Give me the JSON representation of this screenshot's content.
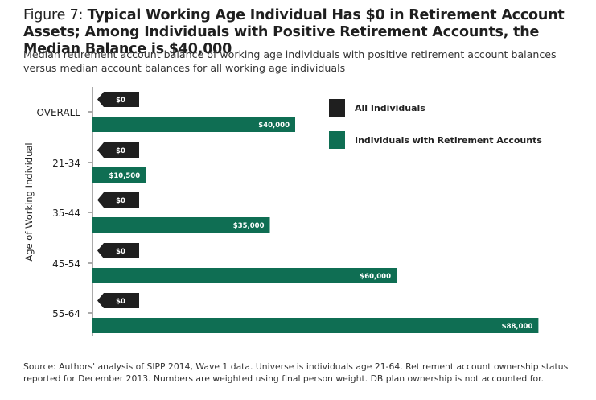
{
  "figure": {
    "title_lead": "Figure 7: ",
    "title_bold": "Typical Working Age Individual Has $0 in Retirement Account Assets; Among Individuals with Positive Retirement Accounts, the Median Balance is $40,000",
    "subtitle": "Median retirement account balance of working age individuals with positive retirement account balances versus median account balances for all working age individuals",
    "source": "Source: Authors' analysis of SIPP 2014, Wave 1 data. Universe is individuals age 21-64. Retirement account ownership status reported for December 2013. Numbers are weighted using final person weight. DB plan ownership is not accounted for."
  },
  "colors": {
    "all_individuals": "#1f1f1f",
    "with_accounts": "#0f6e53",
    "axis": "#555555"
  },
  "chart_data": {
    "type": "bar",
    "orientation": "horizontal",
    "ylabel": "Age of Working Individual",
    "xlabel": "",
    "categories": [
      "OVERALL",
      "21-34",
      "35-44",
      "45-54",
      "55-64"
    ],
    "series": [
      {
        "name": "All Individuals",
        "values": [
          0,
          0,
          0,
          0,
          0
        ],
        "labels": [
          "$0",
          "$0",
          "$0",
          "$0",
          "$0"
        ]
      },
      {
        "name": "Individuals with Retirement Accounts",
        "values": [
          40000,
          10500,
          35000,
          60000,
          88000
        ],
        "labels": [
          "$40,000",
          "$10,500",
          "$35,000",
          "$60,000",
          "$88,000"
        ]
      }
    ],
    "legend_position": "top-right",
    "grid": false
  }
}
